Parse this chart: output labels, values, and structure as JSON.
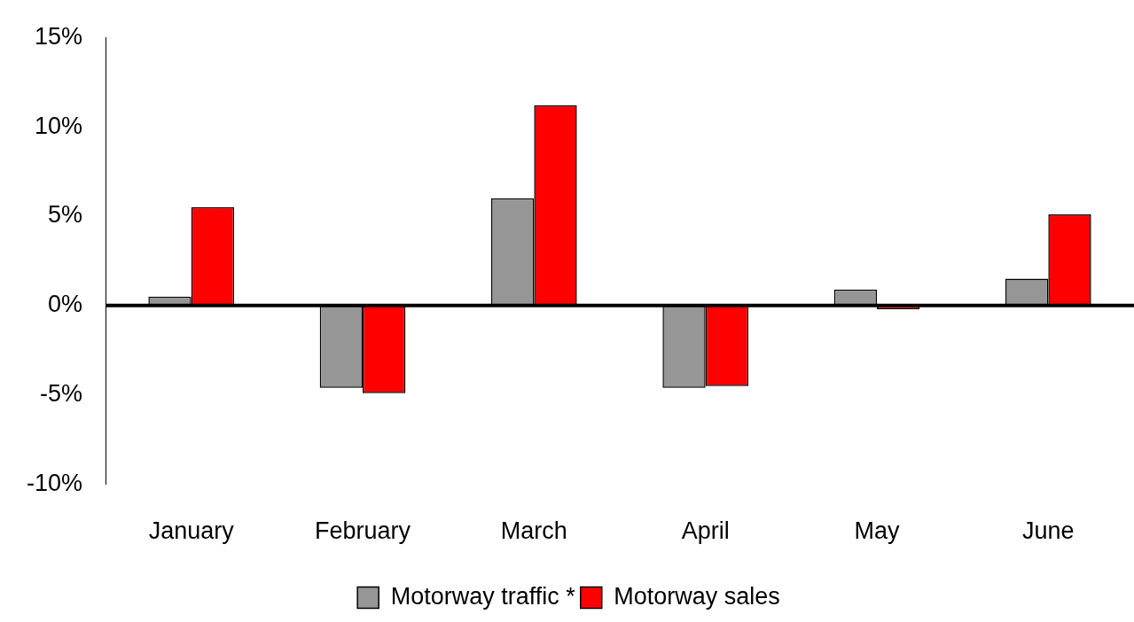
{
  "chart_data": {
    "type": "bar",
    "categories": [
      "January",
      "February",
      "March",
      "April",
      "May",
      "June"
    ],
    "series": [
      {
        "name": "Motorway traffic *",
        "color": "#969696",
        "values": [
          0.5,
          -4.6,
          6.0,
          -4.6,
          0.9,
          1.5
        ]
      },
      {
        "name": "Motorway sales",
        "color": "#ff0000",
        "values": [
          5.5,
          -4.9,
          11.2,
          -4.5,
          -0.2,
          5.1
        ]
      }
    ],
    "ylim": [
      -10,
      15
    ],
    "yticks": [
      {
        "value": -10,
        "label": "-10%"
      },
      {
        "value": -5,
        "label": "-5%"
      },
      {
        "value": 0,
        "label": "0%"
      },
      {
        "value": 5,
        "label": "5%"
      },
      {
        "value": 10,
        "label": "10%"
      },
      {
        "value": 15,
        "label": "15%"
      }
    ],
    "ref_lines": [
      {
        "axis": "y",
        "value": 0,
        "color": "#000000"
      }
    ],
    "grid": false,
    "legend": "bottom"
  }
}
